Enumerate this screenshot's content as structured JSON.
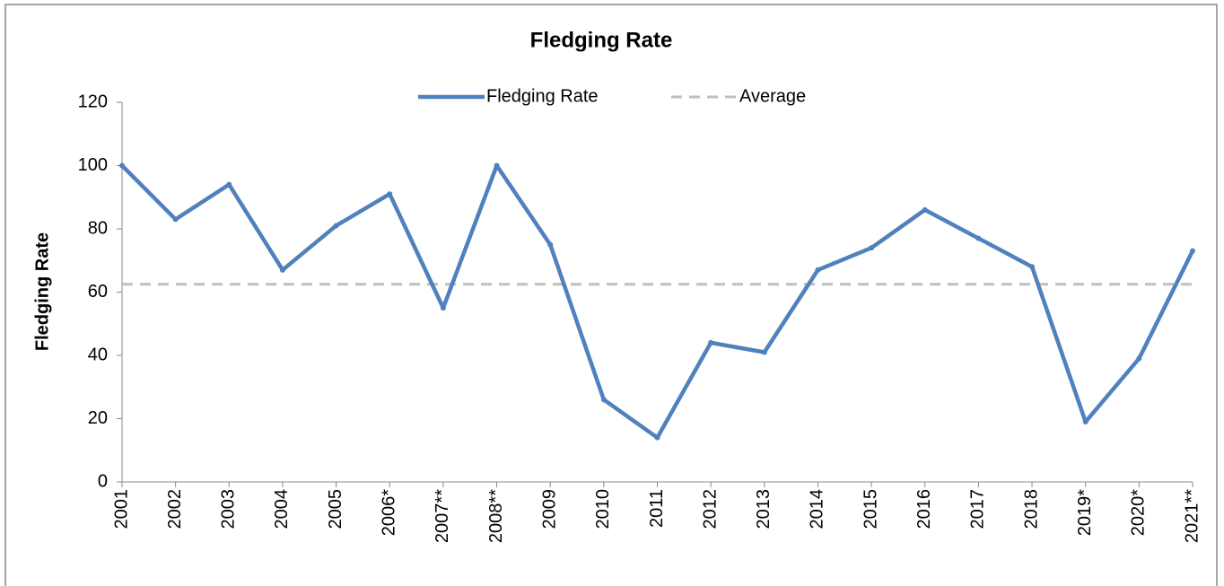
{
  "chart_data": {
    "type": "line",
    "title": "Fledging Rate",
    "y_label": "Fledging Rate",
    "categories": [
      "2001",
      "2002",
      "2003",
      "2004",
      "2005",
      "2006*",
      "2007**",
      "2008**",
      "2009",
      "2010",
      "2011",
      "2012",
      "2013",
      "2014",
      "2015",
      "2016",
      "2017",
      "2018",
      "2019*",
      "2020*",
      "2021**"
    ],
    "series": [
      {
        "name": "Fledging Rate",
        "color": "#4f81bd",
        "values": [
          100,
          83,
          94,
          67,
          81,
          91,
          55,
          100,
          75,
          26,
          14,
          44,
          41,
          67,
          74,
          86,
          77,
          68,
          19,
          39,
          73
        ]
      },
      {
        "name": "Average",
        "color": "#bfbfbf",
        "dashed": true,
        "values": [
          62.5,
          62.5,
          62.5,
          62.5,
          62.5,
          62.5,
          62.5,
          62.5,
          62.5,
          62.5,
          62.5,
          62.5,
          62.5,
          62.5,
          62.5,
          62.5,
          62.5,
          62.5,
          62.5,
          62.5,
          62.5
        ]
      }
    ],
    "ylim": [
      0,
      120
    ],
    "yticks": [
      0,
      20,
      40,
      60,
      80,
      100,
      120
    ],
    "grid": false
  }
}
